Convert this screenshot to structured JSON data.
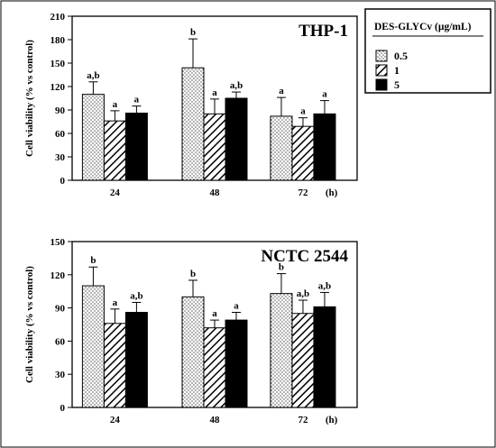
{
  "legend": {
    "title": "DES-GLYCv (µg/mL)",
    "items": [
      {
        "label": "0.5",
        "pattern": "dots"
      },
      {
        "label": "1",
        "pattern": "hatch"
      },
      {
        "label": "5",
        "pattern": "solid"
      }
    ]
  },
  "colors": {
    "bar_solid": "#000000",
    "bar_dots_bg": "#ffffff",
    "axis": "#000000"
  },
  "chart_data": [
    {
      "type": "bar",
      "title": "THP-1",
      "ylabel": "Cell viability (% vs control)",
      "xunit": "(h)",
      "categories": [
        "24",
        "48",
        "72"
      ],
      "ylim": [
        0,
        210
      ],
      "yticks": [
        0,
        30,
        60,
        90,
        120,
        150,
        180,
        210
      ],
      "series": [
        {
          "name": "0.5",
          "values": [
            110,
            144,
            82
          ],
          "errors": [
            16,
            37,
            24
          ],
          "labels": [
            "a,b",
            "b",
            "a"
          ]
        },
        {
          "name": "1",
          "values": [
            76,
            85,
            69
          ],
          "errors": [
            13,
            19,
            11
          ],
          "labels": [
            "a",
            "a",
            "a"
          ]
        },
        {
          "name": "5",
          "values": [
            86,
            105,
            85
          ],
          "errors": [
            9,
            8,
            17
          ],
          "labels": [
            "a",
            "a,b",
            "a"
          ]
        }
      ]
    },
    {
      "type": "bar",
      "title": "NCTC 2544",
      "ylabel": "Cell viability (% vs control)",
      "xunit": "(h)",
      "categories": [
        "24",
        "48",
        "72"
      ],
      "ylim": [
        0,
        150
      ],
      "yticks": [
        0,
        30,
        60,
        90,
        120,
        150
      ],
      "series": [
        {
          "name": "0.5",
          "values": [
            110,
            100,
            103
          ],
          "errors": [
            17,
            15,
            18
          ],
          "labels": [
            "b",
            "b",
            "b"
          ]
        },
        {
          "name": "1",
          "values": [
            76,
            72,
            85
          ],
          "errors": [
            13,
            7,
            12
          ],
          "labels": [
            "a",
            "a",
            "a,b"
          ]
        },
        {
          "name": "5",
          "values": [
            86,
            79,
            91
          ],
          "errors": [
            9,
            7,
            13
          ],
          "labels": [
            "a,b",
            "a",
            "a,b"
          ]
        }
      ]
    }
  ]
}
